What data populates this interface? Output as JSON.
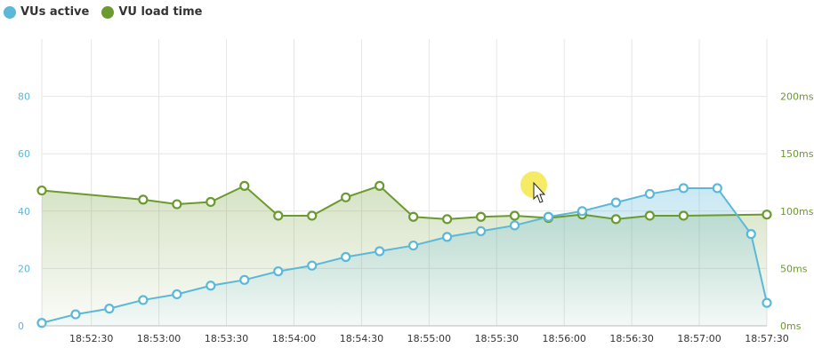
{
  "legend": {
    "vus_label": "VUs active",
    "load_label": "VU load time"
  },
  "colors": {
    "vus": "#5bb8d8",
    "load": "#6b9a2e",
    "grid": "#e6e6e6",
    "cursor_highlight": "#f5e84a"
  },
  "chart_data": {
    "type": "line",
    "x_unit": "time",
    "x_range": [
      "18:52:08",
      "18:57:30"
    ],
    "x_ticks": [
      "18:52:30",
      "18:53:00",
      "18:53:30",
      "18:54:00",
      "18:54:30",
      "18:55:00",
      "18:55:30",
      "18:56:00",
      "18:56:30",
      "18:57:00",
      "18:57:30"
    ],
    "y_left": {
      "range": [
        0,
        100
      ],
      "ticks": [
        0,
        20,
        40,
        60,
        80
      ],
      "tick_labels": [
        "0",
        "20",
        "40",
        "60",
        "80"
      ]
    },
    "y_right": {
      "range": [
        0,
        250
      ],
      "ticks": [
        0,
        50,
        100,
        150,
        200
      ],
      "tick_labels": [
        "0ms",
        "50ms",
        "100ms",
        "150ms",
        "200ms"
      ]
    },
    "grid": true,
    "legend_position": "top-left",
    "series": [
      {
        "name": "VUs active",
        "axis": "left",
        "color": "#5bb8d8",
        "fill": "area",
        "points": [
          [
            "18:52:08",
            1
          ],
          [
            "18:52:23",
            4
          ],
          [
            "18:52:38",
            6
          ],
          [
            "18:52:53",
            9
          ],
          [
            "18:53:08",
            11
          ],
          [
            "18:53:23",
            14
          ],
          [
            "18:53:38",
            16
          ],
          [
            "18:53:53",
            19
          ],
          [
            "18:54:08",
            21
          ],
          [
            "18:54:23",
            24
          ],
          [
            "18:54:38",
            26
          ],
          [
            "18:54:53",
            28
          ],
          [
            "18:55:08",
            31
          ],
          [
            "18:55:23",
            33
          ],
          [
            "18:55:38",
            35
          ],
          [
            "18:55:53",
            38
          ],
          [
            "18:56:08",
            40
          ],
          [
            "18:56:23",
            43
          ],
          [
            "18:56:38",
            46
          ],
          [
            "18:56:53",
            48
          ],
          [
            "18:57:08",
            48
          ],
          [
            "18:57:23",
            32
          ],
          [
            "18:57:30",
            8
          ]
        ]
      },
      {
        "name": "VU load time",
        "axis": "right",
        "color": "#6b9a2e",
        "fill": "area",
        "points": [
          [
            "18:52:08",
            118
          ],
          [
            "18:52:53",
            110
          ],
          [
            "18:53:08",
            106
          ],
          [
            "18:53:23",
            108
          ],
          [
            "18:53:38",
            122
          ],
          [
            "18:53:53",
            96
          ],
          [
            "18:54:08",
            96
          ],
          [
            "18:54:23",
            112
          ],
          [
            "18:54:38",
            122
          ],
          [
            "18:54:53",
            95
          ],
          [
            "18:55:08",
            93
          ],
          [
            "18:55:23",
            95
          ],
          [
            "18:55:38",
            96
          ],
          [
            "18:55:53",
            94
          ],
          [
            "18:56:08",
            97
          ],
          [
            "18:56:23",
            93
          ],
          [
            "18:56:38",
            96
          ],
          [
            "18:56:53",
            96
          ],
          [
            "18:57:30",
            97
          ]
        ]
      }
    ]
  }
}
